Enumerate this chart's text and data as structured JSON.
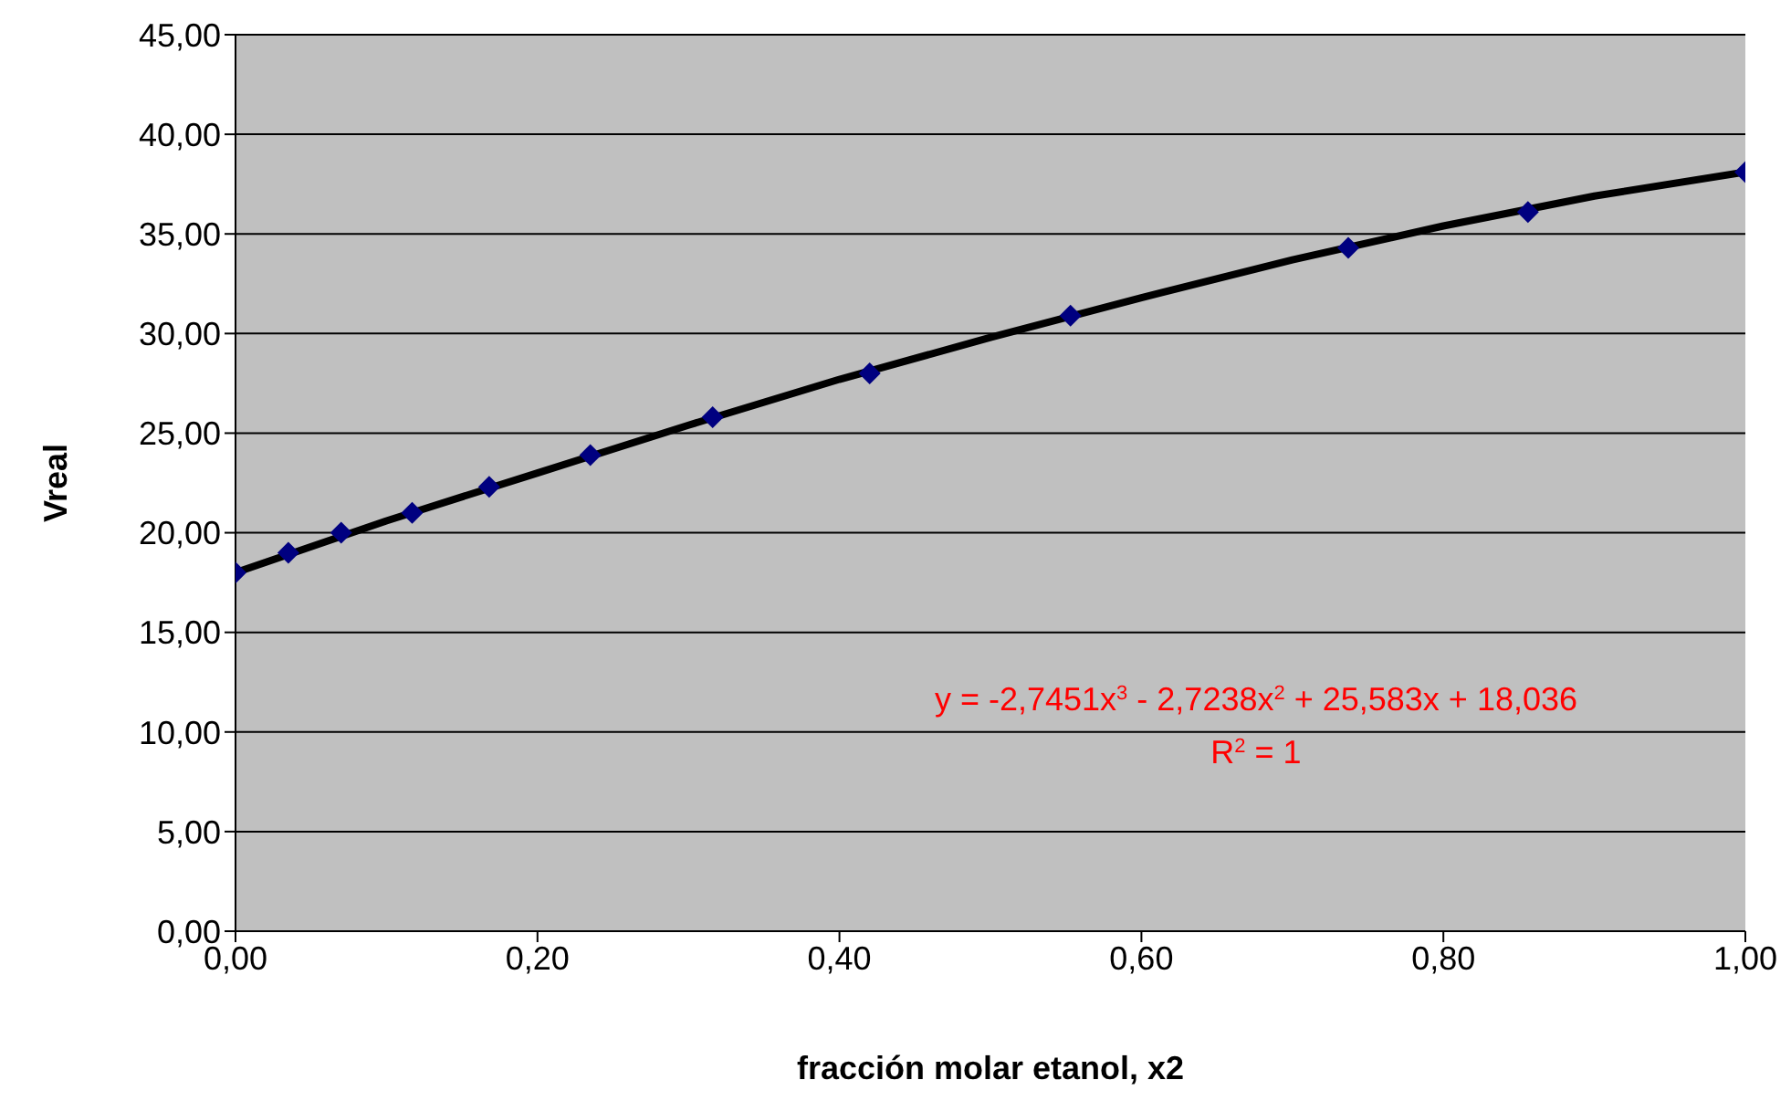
{
  "chart_data": {
    "type": "scatter",
    "xlabel": "fracción molar etanol, x2",
    "ylabel": "Vreal",
    "x": [
      0,
      0.035,
      0.07,
      0.117,
      0.168,
      0.235,
      0.316,
      0.42,
      0.553,
      0.737,
      0.856,
      1
    ],
    "series": [
      {
        "color": "#000080",
        "marker": "diamond",
        "values": [
          18.0,
          19.0,
          20.0,
          21.0,
          22.3,
          23.9,
          25.8,
          28.0,
          30.9,
          34.3,
          36.1,
          38.1
        ]
      },
      {
        "type": "line",
        "color": "#000000",
        "marker": "none",
        "x": [
          0,
          0.1,
          0.2,
          0.3,
          0.4,
          0.5,
          0.6,
          0.7,
          0.8,
          0.9,
          1
        ],
        "values": [
          18.0,
          20.6,
          23.0,
          25.4,
          27.7,
          29.8,
          31.8,
          33.7,
          35.4,
          36.9,
          38.1
        ]
      }
    ],
    "xlim": [
      0,
      1
    ],
    "xticks": [
      {
        "value": 0,
        "label": "0,00"
      },
      {
        "value": 0.2,
        "label": "0,20"
      },
      {
        "value": 0.4,
        "label": "0,40"
      },
      {
        "value": 0.6,
        "label": "0,60"
      },
      {
        "value": 0.8,
        "label": "0,80"
      },
      {
        "value": 1,
        "label": "1,00"
      }
    ],
    "ylim": [
      0,
      45
    ],
    "yticks": [
      {
        "value": 0,
        "label": "0,00"
      },
      {
        "value": 5,
        "label": "5,00"
      },
      {
        "value": 10,
        "label": "10,00"
      },
      {
        "value": 15,
        "label": "15,00"
      },
      {
        "value": 20,
        "label": "20,00"
      },
      {
        "value": 25,
        "label": "25,00"
      },
      {
        "value": 30,
        "label": "30,00"
      },
      {
        "value": 35,
        "label": "35,00"
      },
      {
        "value": 40,
        "label": "40,00"
      },
      {
        "value": 45,
        "label": "45,00"
      }
    ],
    "grid": "y",
    "annotations": [
      "y = -2,7451x$^{3}$ - 2,7238x$^{2}$ + 25,583x + 18,036",
      "R$^{2}$ = 1"
    ]
  }
}
